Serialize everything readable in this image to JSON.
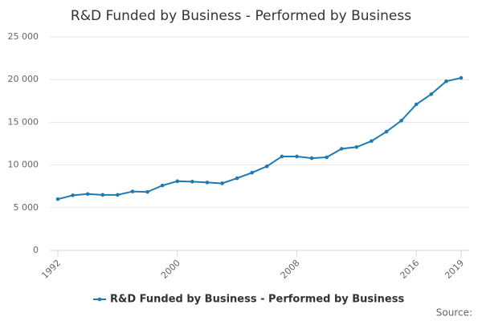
{
  "chart_data": {
    "type": "line",
    "title": "R&D Funded by Business - Performed by Business",
    "x": [
      1992,
      1993,
      1994,
      1995,
      1996,
      1997,
      1998,
      1999,
      2000,
      2001,
      2002,
      2003,
      2004,
      2005,
      2006,
      2007,
      2008,
      2009,
      2010,
      2011,
      2012,
      2013,
      2014,
      2015,
      2016,
      2017,
      2018,
      2019
    ],
    "series": [
      {
        "name": "R&D Funded by Business - Performed by Business",
        "color": "#1f7ab4",
        "values": [
          6000,
          6450,
          6600,
          6500,
          6500,
          6900,
          6850,
          7600,
          8100,
          8050,
          7950,
          7850,
          8450,
          9100,
          9850,
          11000,
          11000,
          10800,
          10900,
          11900,
          12100,
          12800,
          13900,
          15200,
          17100,
          18300,
          19800,
          20200
        ]
      }
    ],
    "xlim": [
      1992,
      2019
    ],
    "xticks": [
      1992,
      2000,
      2008,
      2016,
      2019
    ],
    "ylim": [
      0,
      25000
    ],
    "yticks": [
      0,
      {
        "value": 5000,
        "label": "5 000"
      },
      {
        "value": 10000,
        "label": "10 000"
      },
      {
        "value": 15000,
        "label": "15 000"
      },
      {
        "value": 20000,
        "label": "20 000"
      },
      {
        "value": 25000,
        "label": "25 000"
      }
    ],
    "grid": true,
    "legend": "bottom",
    "source": "Source:"
  }
}
